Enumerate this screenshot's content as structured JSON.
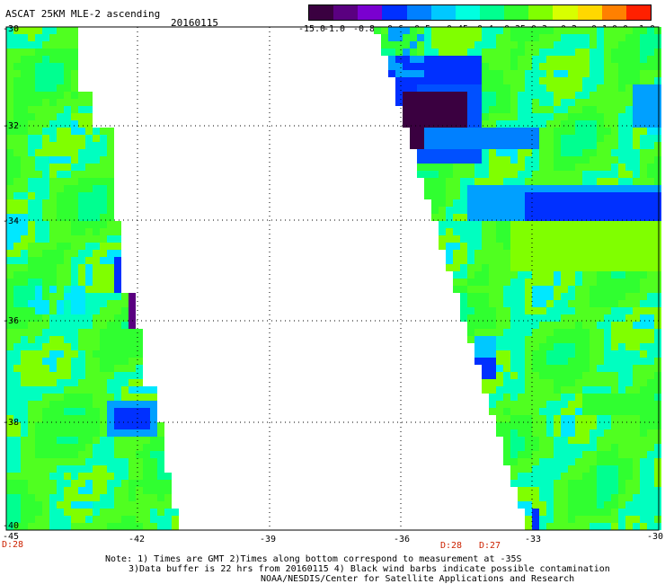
{
  "header": {
    "title": "ASCAT 25KM MLE-2 ascending",
    "date": "20160115"
  },
  "colorbar": {
    "labels": [
      "-15.0",
      "-1.0",
      "-0.8",
      "-0.6",
      "-0.5",
      "-0.45",
      "-0.4",
      "-0.35",
      "-0.3",
      "-0.2",
      "-0.1",
      "0.0",
      "1.0"
    ],
    "colors": [
      "#3a0040",
      "#5a0080",
      "#7a00d0",
      "#0030ff",
      "#0080ff",
      "#00c8ff",
      "#00ffe0",
      "#00ff90",
      "#30ff30",
      "#80ff00",
      "#d8ff00",
      "#ffd800",
      "#ff8000",
      "#ff2000"
    ]
  },
  "lat_labels": [
    "-30",
    "-32",
    "-34",
    "-36",
    "-38",
    "-40"
  ],
  "lon_labels": [
    "-45",
    "-42",
    "-39",
    "-36",
    "-33",
    "-30"
  ],
  "time_labels": {
    "left": "D:28",
    "right1": "D:28",
    "right2": "D:27"
  },
  "notes": {
    "line1": "Note: 1) Times are GMT 2)Times along bottom correspond to measurement at -35S",
    "line2": "3)Data buffer is 22 hrs from 20160115 4) Black wind barbs indicate possible contamination",
    "line3": "NOAA/NESDIS/Center for Satellite Applications and Research"
  }
}
